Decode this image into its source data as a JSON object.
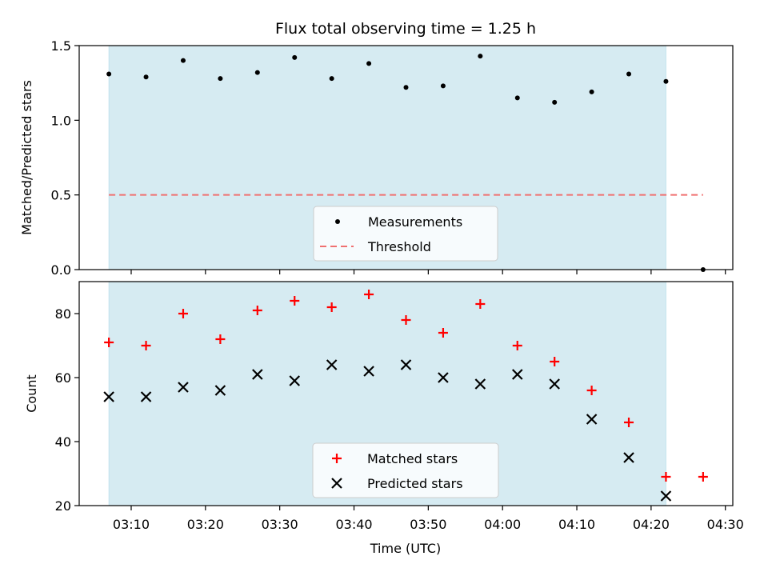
{
  "chart_data": [
    {
      "type": "scatter",
      "title": "Flux total observing time = 1.25 h",
      "xlabel": "",
      "ylabel": "Matched/Predicted stars",
      "ylim": [
        0,
        1.5
      ],
      "yticks": [
        "0.0",
        "0.5",
        "1.0",
        "1.5"
      ],
      "shaded_x_range": [
        "03:07",
        "04:22"
      ],
      "threshold": 0.5,
      "x": [
        "03:07",
        "03:12",
        "03:17",
        "03:22",
        "03:27",
        "03:32",
        "03:37",
        "03:42",
        "03:47",
        "03:52",
        "03:57",
        "04:02",
        "04:07",
        "04:12",
        "04:17",
        "04:22",
        "04:27"
      ],
      "series": [
        {
          "name": "Measurements",
          "marker": "dot",
          "color": "#000000",
          "values": [
            1.31,
            1.29,
            1.4,
            1.28,
            1.32,
            1.42,
            1.28,
            1.38,
            1.22,
            1.23,
            1.43,
            1.15,
            1.12,
            1.19,
            1.31,
            1.26,
            0.0
          ]
        },
        {
          "name": "Threshold",
          "marker": "dashed-line",
          "color": "#f07070",
          "values": [
            0.5,
            0.5
          ]
        }
      ],
      "legend": "lower-center",
      "grid": false
    },
    {
      "type": "scatter",
      "title": "",
      "xlabel": "Time (UTC)",
      "ylabel": "Count",
      "ylim": [
        20,
        90
      ],
      "yticks": [
        "20",
        "40",
        "60",
        "80"
      ],
      "xticks": [
        "03:10",
        "03:20",
        "03:30",
        "03:40",
        "03:50",
        "04:00",
        "04:10",
        "04:20",
        "04:30"
      ],
      "shaded_x_range": [
        "03:07",
        "04:22"
      ],
      "x": [
        "03:07",
        "03:12",
        "03:17",
        "03:22",
        "03:27",
        "03:32",
        "03:37",
        "03:42",
        "03:47",
        "03:52",
        "03:57",
        "04:02",
        "04:07",
        "04:12",
        "04:17",
        "04:22",
        "04:27"
      ],
      "series": [
        {
          "name": "Matched stars",
          "marker": "plus",
          "color": "#ff0000",
          "values": [
            71,
            70,
            80,
            72,
            81,
            84,
            82,
            86,
            78,
            74,
            83,
            70,
            65,
            56,
            46,
            29,
            29
          ]
        },
        {
          "name": "Predicted stars",
          "marker": "x",
          "color": "#000000",
          "values": [
            54,
            54,
            57,
            56,
            61,
            59,
            64,
            62,
            64,
            60,
            58,
            61,
            58,
            47,
            35,
            23,
            null
          ]
        }
      ],
      "legend": "lower-center",
      "grid": false
    }
  ]
}
